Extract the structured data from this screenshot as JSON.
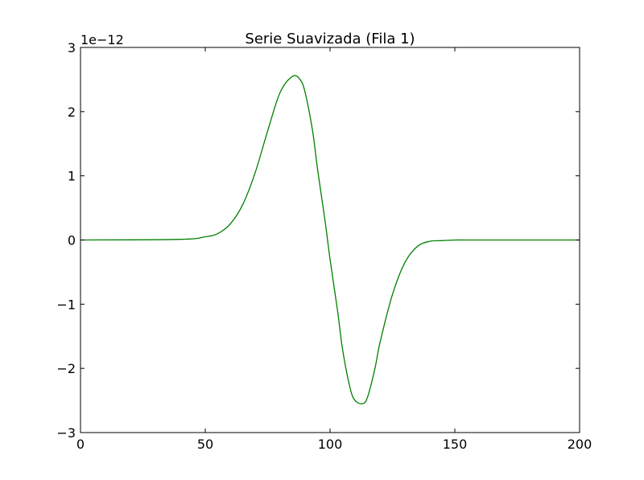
{
  "chart_data": {
    "type": "line",
    "title": "Serie Suavizada (Fila 1)",
    "xlabel": "",
    "ylabel": "",
    "y_offset_label": "1e−12",
    "xlim": [
      0,
      200
    ],
    "ylim": [
      -3e-12,
      3e-12
    ],
    "x_ticks": [
      0,
      50,
      100,
      150,
      200
    ],
    "x_tick_labels": [
      "0",
      "50",
      "100",
      "150",
      "200"
    ],
    "y_ticks": [
      -3e-12,
      -2e-12,
      -1e-12,
      0,
      1e-12,
      2e-12,
      3e-12
    ],
    "y_tick_labels": [
      "−3",
      "−2",
      "−1",
      "0",
      "1",
      "2",
      "3"
    ],
    "grid": false,
    "legend": "none",
    "series": [
      {
        "color": "#008000",
        "x": [
          0,
          40,
          50,
          55,
          60,
          65,
          70,
          75,
          80,
          85,
          88,
          90,
          93,
          95,
          98,
          100,
          103,
          105,
          108,
          110,
          113,
          115,
          118,
          120,
          125,
          130,
          135,
          140,
          145,
          150,
          155,
          160,
          200
        ],
        "y": [
          0,
          1e-14,
          5e-14,
          1e-13,
          2.5e-13,
          5.5e-13,
          1.05e-12,
          1.7e-12,
          2.3e-12,
          2.55e-12,
          2.5e-12,
          2.3e-12,
          1.7e-12,
          1.1e-12,
          3e-13,
          -3e-13,
          -1.1e-12,
          -1.7e-12,
          -2.3e-12,
          -2.5e-12,
          -2.55e-12,
          -2.45e-12,
          -2e-12,
          -1.6e-12,
          -8.5e-13,
          -3.5e-13,
          -1e-13,
          -2e-14,
          -1e-14,
          0,
          0,
          0,
          0
        ]
      }
    ]
  }
}
